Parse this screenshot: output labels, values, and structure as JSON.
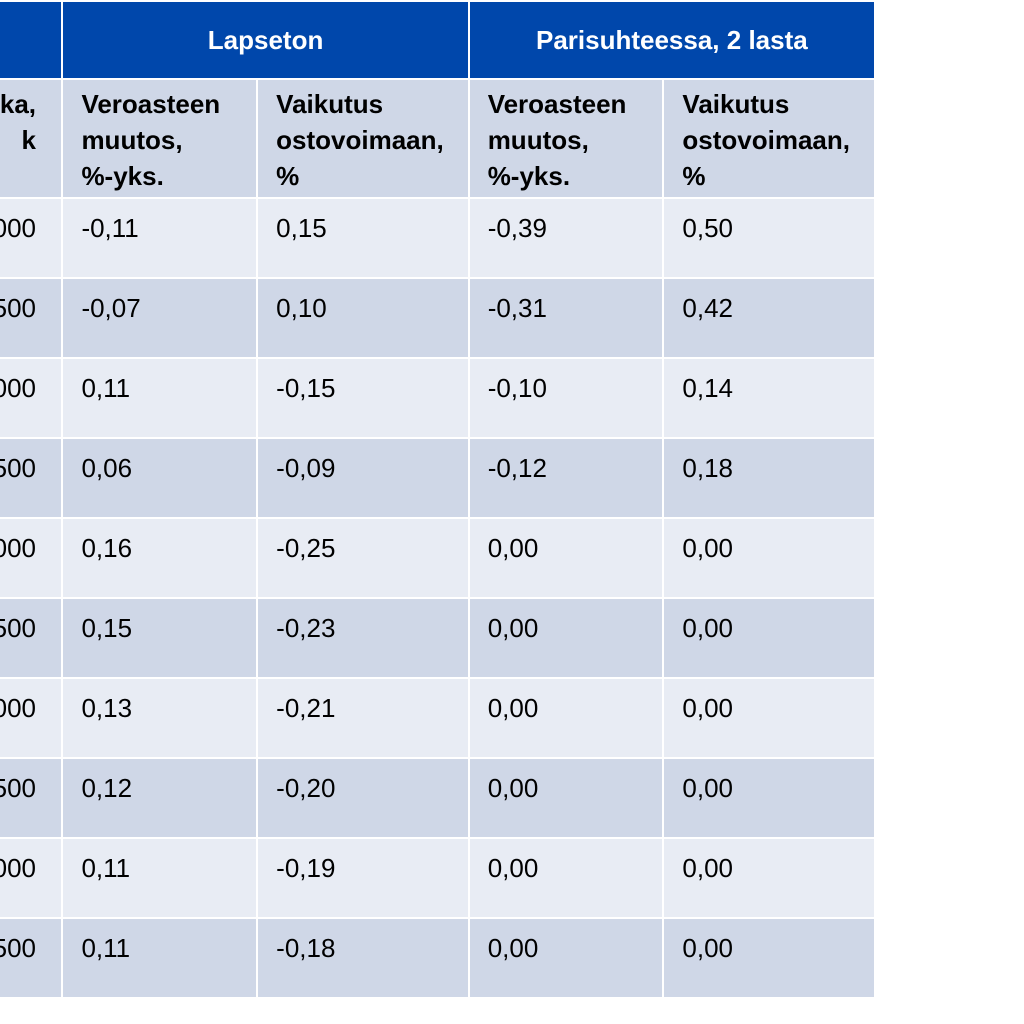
{
  "headers": {
    "groups": [
      "",
      "Lapseton",
      "Parisuhteessa, 2 lasta"
    ],
    "columns": [
      "lkka,\nk",
      "Veroasteen\nmuutos,\n%-yks.",
      "Vaikutus\nostovoimaan,\n%",
      "Veroasteen\nmuutos,\n%-yks.",
      "Vaikutus\nostovoimaan,\n%"
    ]
  },
  "rows": [
    [
      "000",
      "-0,11",
      "0,15",
      "-0,39",
      "0,50"
    ],
    [
      "500",
      "-0,07",
      "0,10",
      "-0,31",
      "0,42"
    ],
    [
      "000",
      "0,11",
      "-0,15",
      "-0,10",
      "0,14"
    ],
    [
      "500",
      "0,06",
      "-0,09",
      "-0,12",
      "0,18"
    ],
    [
      "000",
      "0,16",
      "-0,25",
      "0,00",
      "0,00"
    ],
    [
      "500",
      "0,15",
      "-0,23",
      "0,00",
      "0,00"
    ],
    [
      "000",
      "0,13",
      "-0,21",
      "0,00",
      "0,00"
    ],
    [
      "500",
      "0,12",
      "-0,20",
      "0,00",
      "0,00"
    ],
    [
      "000",
      "0,11",
      "-0,19",
      "0,00",
      "0,00"
    ],
    [
      "500",
      "0,11",
      "-0,18",
      "0,00",
      "0,00"
    ]
  ],
  "colors": {
    "header_blue": "#0047ab",
    "row_light": "#e8ecf4",
    "row_dark": "#cfd7e7"
  }
}
